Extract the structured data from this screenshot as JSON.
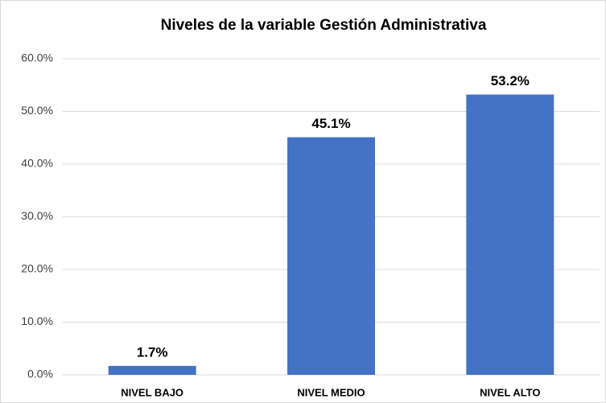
{
  "chart_data": {
    "type": "bar",
    "title": "Niveles de la variable Gestión Administrativa",
    "categories": [
      "NIVEL BAJO",
      "NIVEL MEDIO",
      "NIVEL ALTO"
    ],
    "values": [
      1.7,
      45.1,
      53.2
    ],
    "value_labels": [
      "1.7%",
      "45.1%",
      "53.2%"
    ],
    "color": "#4472c4",
    "ylim": [
      0,
      60
    ],
    "yticks": [
      {
        "value": 0,
        "label": "0.0%"
      },
      {
        "value": 10,
        "label": "10.0%"
      },
      {
        "value": 20,
        "label": "20.0%"
      },
      {
        "value": 30,
        "label": "30.0%"
      },
      {
        "value": 40,
        "label": "40.0%"
      },
      {
        "value": 50,
        "label": "50.0%"
      },
      {
        "value": 60,
        "label": "60.0%"
      }
    ],
    "grid": true
  }
}
